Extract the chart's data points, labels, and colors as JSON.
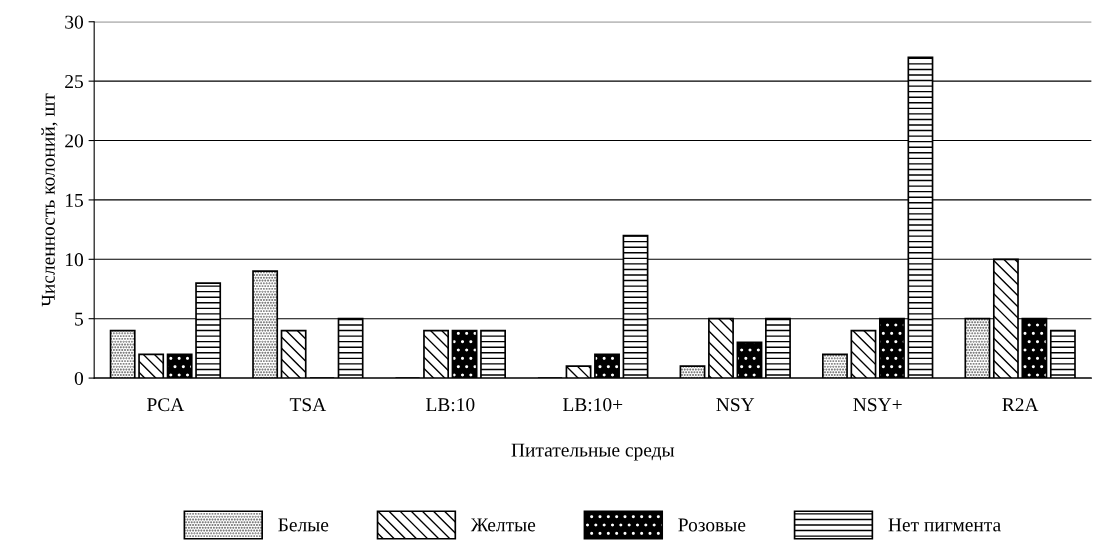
{
  "chart_data": {
    "type": "bar",
    "xlabel": "Питательные среды",
    "ylabel": "Численность колоний, шт",
    "categories": [
      "PCA",
      "TSA",
      "LB:10",
      "LB:10+",
      "NSY",
      "NSY+",
      "R2A"
    ],
    "series": [
      {
        "name": "Белые",
        "color": "#000000",
        "values": [
          4,
          9,
          0,
          0,
          1,
          2,
          5
        ]
      },
      {
        "name": "Желтые",
        "color": "#000000",
        "values": [
          2,
          4,
          4,
          1,
          5,
          4,
          10
        ]
      },
      {
        "name": "Розовые",
        "color": "#000000",
        "values": [
          2,
          0,
          4,
          2,
          3,
          5,
          5
        ]
      },
      {
        "name": "Нет пигмента",
        "color": "#000000",
        "values": [
          8,
          5,
          4,
          12,
          5,
          27,
          4
        ]
      }
    ],
    "ylim": [
      0,
      30
    ],
    "yticks": [
      0,
      5,
      10,
      15,
      20,
      25,
      30
    ],
    "grid": "y",
    "legend": "bottom"
  }
}
